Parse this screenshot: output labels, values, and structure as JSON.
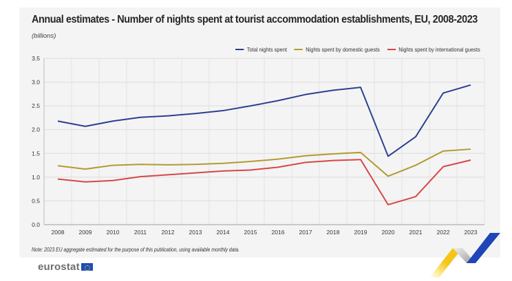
{
  "header": {
    "title": "Annual estimates - Number of nights spent at tourist accommodation establishments, EU, 2008-2023",
    "subtitle": "(billions)"
  },
  "footer": {
    "note": "Note: 2023 EU aggregate estimated for the purpose of this publication, using available monthly data.",
    "logo_text": "eurostat"
  },
  "chart_data": {
    "type": "line",
    "title": "Annual estimates - Number of nights spent at tourist accommodation establishments, EU, 2008-2023",
    "subtitle": "(billions)",
    "xlabel": "",
    "ylabel": "",
    "x": [
      "2008",
      "2009",
      "2010",
      "2011",
      "2012",
      "2013",
      "2014",
      "2015",
      "2016",
      "2017",
      "2018",
      "2019",
      "2020",
      "2021",
      "2022",
      "2023"
    ],
    "ylim": [
      0,
      3.5
    ],
    "yticks": [
      "0.0",
      "0.5",
      "1.0",
      "1.5",
      "2.0",
      "2.5",
      "3.0",
      "3.5"
    ],
    "ytick_values": [
      0,
      0.5,
      1.0,
      1.5,
      2.0,
      2.5,
      3.0,
      3.5
    ],
    "grid": true,
    "legend_position": "top-right",
    "series": [
      {
        "name": "Total nights spent",
        "color": "#2b3f8f",
        "values": [
          2.18,
          2.07,
          2.18,
          2.26,
          2.29,
          2.34,
          2.4,
          2.5,
          2.61,
          2.74,
          2.83,
          2.89,
          1.44,
          1.85,
          2.77,
          2.94
        ]
      },
      {
        "name": "Nights spent by domestic guests",
        "color": "#b29a2e",
        "values": [
          1.24,
          1.17,
          1.25,
          1.27,
          1.26,
          1.27,
          1.29,
          1.33,
          1.38,
          1.45,
          1.49,
          1.52,
          1.02,
          1.25,
          1.55,
          1.59
        ]
      },
      {
        "name": "Nights spent by international guests",
        "color": "#d94545",
        "values": [
          0.96,
          0.9,
          0.93,
          1.01,
          1.05,
          1.09,
          1.13,
          1.15,
          1.21,
          1.31,
          1.35,
          1.37,
          0.42,
          0.59,
          1.22,
          1.36
        ]
      }
    ]
  }
}
